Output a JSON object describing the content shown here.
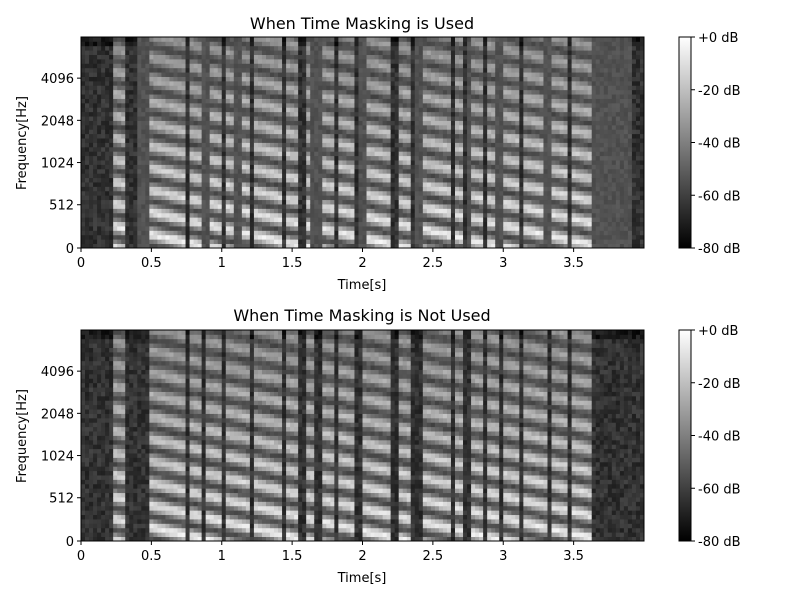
{
  "chart_data": [
    {
      "type": "heatmap",
      "title": "When Time Masking is Used",
      "xlabel": "Time[s]",
      "ylabel": "Frequency[Hz]",
      "xlim": [
        0,
        4.0
      ],
      "ylim": [
        0,
        5500
      ],
      "x_ticks": [
        0,
        0.5,
        1,
        1.5,
        2,
        2.5,
        3,
        3.5
      ],
      "x_tick_labels": [
        "0",
        "0.5",
        "1",
        "1.5",
        "2",
        "2.5",
        "3",
        "3.5"
      ],
      "y_ticks": [
        0,
        512,
        1024,
        2048,
        4096
      ],
      "y_tick_labels": [
        "0",
        "512",
        "1024",
        "2048",
        "4096"
      ],
      "colorbar": {
        "range_db": [
          -80,
          0
        ],
        "ticks": [
          0,
          -20,
          -40,
          -60,
          -80
        ],
        "tick_labels": [
          "+0 dB",
          "-20 dB",
          "-40 dB",
          "-60 dB",
          "-80 dB"
        ],
        "colormap": "gray"
      },
      "time_masking": true
    },
    {
      "type": "heatmap",
      "title": "When Time Masking is Not Used",
      "xlabel": "Time[s]",
      "ylabel": "Frequency[Hz]",
      "xlim": [
        0,
        4.0
      ],
      "ylim": [
        0,
        5500
      ],
      "x_ticks": [
        0,
        0.5,
        1,
        1.5,
        2,
        2.5,
        3,
        3.5
      ],
      "x_tick_labels": [
        "0",
        "0.5",
        "1",
        "1.5",
        "2",
        "2.5",
        "3",
        "3.5"
      ],
      "y_ticks": [
        0,
        512,
        1024,
        2048,
        4096
      ],
      "y_tick_labels": [
        "0",
        "512",
        "1024",
        "2048",
        "4096"
      ],
      "colorbar": {
        "range_db": [
          -80,
          0
        ],
        "ticks": [
          0,
          -20,
          -40,
          -60,
          -80
        ],
        "tick_labels": [
          "+0 dB",
          "-20 dB",
          "-40 dB",
          "-60 dB",
          "-80 dB"
        ],
        "colormap": "gray"
      },
      "time_masking": false
    }
  ]
}
